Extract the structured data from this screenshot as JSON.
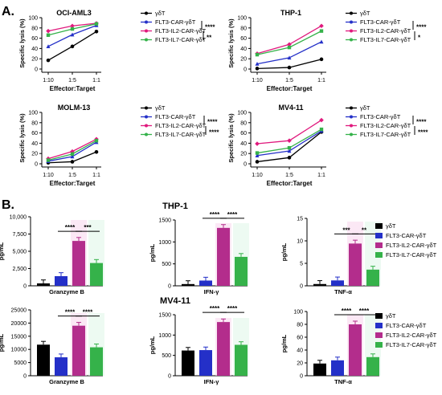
{
  "panel_labels": [
    "A.",
    "B."
  ],
  "section_titles": [
    "THP-1",
    "MV4-11"
  ],
  "colors": {
    "gd": "#000000",
    "flt3": "#2430c8",
    "il2": "#e0197d",
    "il7": "#35b24a",
    "il2_bar": "#b32d8c"
  },
  "chart_data": [
    {
      "type": "line",
      "title": "OCI-AML3",
      "xlabel": "Effector:Target",
      "ylabel": "Specific lysis (%)",
      "categories": [
        "1:10",
        "1:5",
        "1:1"
      ],
      "ylim": [
        0,
        100
      ],
      "yticks": [
        0,
        20,
        40,
        60,
        80,
        100
      ],
      "series": [
        {
          "name": "γδT",
          "values": [
            17,
            44,
            73
          ]
        },
        {
          "name": "FLT3-CAR-γδT",
          "values": [
            44,
            67,
            85
          ]
        },
        {
          "name": "FLT3-IL2-CAR-γδT",
          "values": [
            74,
            84,
            89
          ]
        },
        {
          "name": "FLT3-IL7-CAR-γδT",
          "values": [
            66,
            78,
            88
          ]
        }
      ],
      "significance": [
        "****",
        "**"
      ]
    },
    {
      "type": "line",
      "title": "THP-1",
      "xlabel": "Effector:Target",
      "ylabel": "Specific lysis (%)",
      "categories": [
        "1:10",
        "1:5",
        "1:1"
      ],
      "ylim": [
        0,
        100
      ],
      "yticks": [
        0,
        20,
        40,
        60,
        80,
        100
      ],
      "series": [
        {
          "name": "γδT",
          "values": [
            1,
            3,
            19
          ]
        },
        {
          "name": "FLT3-CAR-γδT",
          "values": [
            10,
            22,
            53
          ]
        },
        {
          "name": "FLT3-IL2-CAR-γδT",
          "values": [
            30,
            48,
            84
          ]
        },
        {
          "name": "FLT3-IL7-CAR-γδT",
          "values": [
            28,
            42,
            74
          ]
        }
      ],
      "significance": [
        "****",
        "*"
      ]
    },
    {
      "type": "line",
      "title": "MOLM-13",
      "xlabel": "Effector:Target",
      "ylabel": "Specific lysis (%)",
      "categories": [
        "1:10",
        "1:5",
        "1:1"
      ],
      "ylim": [
        0,
        100
      ],
      "yticks": [
        0,
        20,
        40,
        60,
        80,
        100
      ],
      "series": [
        {
          "name": "γδT",
          "values": [
            2,
            4,
            23
          ]
        },
        {
          "name": "FLT3-CAR-γδT",
          "values": [
            5,
            14,
            42
          ]
        },
        {
          "name": "FLT3-IL2-CAR-γδT",
          "values": [
            10,
            24,
            48
          ]
        },
        {
          "name": "FLT3-IL7-CAR-γδT",
          "values": [
            7,
            19,
            45
          ]
        }
      ],
      "significance": [
        "****",
        "****"
      ]
    },
    {
      "type": "line",
      "title": "MV4-11",
      "xlabel": "Effector:Target",
      "ylabel": "Specific lysis (%)",
      "categories": [
        "1:10",
        "1:5",
        "1:1"
      ],
      "ylim": [
        0,
        100
      ],
      "yticks": [
        0,
        20,
        40,
        60,
        80,
        100
      ],
      "series": [
        {
          "name": "γδT",
          "values": [
            4,
            12,
            62
          ]
        },
        {
          "name": "FLT3-CAR-γδT",
          "values": [
            16,
            25,
            64
          ]
        },
        {
          "name": "FLT3-IL2-CAR-γδT",
          "values": [
            39,
            45,
            85
          ]
        },
        {
          "name": "FLT3-IL7-CAR-γδT",
          "values": [
            21,
            31,
            67
          ]
        }
      ],
      "significance": [
        "****",
        "****"
      ]
    },
    {
      "type": "bar",
      "xlabel": "Granzyme B",
      "ylabel": "pg/mL",
      "ylim": [
        0,
        10000
      ],
      "yticks": [
        0,
        2500,
        5000,
        7500,
        10000
      ],
      "ytick_labels": [
        "0",
        "2,500",
        "5,000",
        "7,500",
        "10,000"
      ],
      "values": [
        350,
        1400,
        6500,
        3300
      ],
      "brackets": [
        {
          "from": 1,
          "to": 2,
          "label": "****"
        },
        {
          "from": 2,
          "to": 3,
          "label": "***"
        }
      ]
    },
    {
      "type": "bar",
      "xlabel": "IFN-γ",
      "ylabel": "pg/mL",
      "ylim": [
        0,
        1500
      ],
      "yticks": [
        0,
        500,
        1000,
        1500
      ],
      "ytick_labels": [
        "0",
        "500",
        "1000",
        "1500"
      ],
      "values": [
        40,
        120,
        1320,
        660
      ],
      "brackets": [
        {
          "from": 1,
          "to": 2,
          "label": "****"
        },
        {
          "from": 2,
          "to": 3,
          "label": "****"
        }
      ]
    },
    {
      "type": "bar",
      "xlabel": "TNF-α",
      "ylabel": "pg/mL",
      "ylim": [
        0,
        15
      ],
      "yticks": [
        0,
        5,
        10,
        15
      ],
      "ytick_labels": [
        "0",
        "5",
        "10",
        "15"
      ],
      "values": [
        0.4,
        1.2,
        9.4,
        3.6
      ],
      "brackets": [
        {
          "from": 1,
          "to": 2,
          "label": "***"
        },
        {
          "from": 2,
          "to": 3,
          "label": "**"
        }
      ]
    },
    {
      "type": "bar",
      "xlabel": "Granzyme B",
      "ylabel": "pg/mL",
      "ylim": [
        0,
        25000
      ],
      "yticks": [
        0,
        5000,
        10000,
        15000,
        20000,
        25000
      ],
      "ytick_labels": [
        "0",
        "5000",
        "10000",
        "15000",
        "20000",
        "25000"
      ],
      "values": [
        11800,
        7000,
        19000,
        10800
      ],
      "brackets": [
        {
          "from": 1,
          "to": 2,
          "label": "****"
        },
        {
          "from": 2,
          "to": 3,
          "label": "****"
        }
      ]
    },
    {
      "type": "bar",
      "xlabel": "IFN-γ",
      "ylabel": "pg/mL",
      "ylim": [
        0,
        1500
      ],
      "yticks": [
        0,
        500,
        1000,
        1500
      ],
      "ytick_labels": [
        "0",
        "500",
        "1000",
        "1500"
      ],
      "values": [
        620,
        630,
        1320,
        760
      ],
      "brackets": [
        {
          "from": 1,
          "to": 2,
          "label": "****"
        },
        {
          "from": 2,
          "to": 3,
          "label": "****"
        }
      ]
    },
    {
      "type": "bar",
      "xlabel": "TNF-α",
      "ylabel": "pg/mL",
      "ylim": [
        0,
        100
      ],
      "yticks": [
        0,
        20,
        40,
        60,
        80,
        100
      ],
      "ytick_labels": [
        "0",
        "20",
        "40",
        "60",
        "80",
        "100"
      ],
      "values": [
        19,
        24,
        80,
        29
      ],
      "brackets": [
        {
          "from": 1,
          "to": 2,
          "label": "****"
        },
        {
          "from": 2,
          "to": 3,
          "label": "****"
        }
      ]
    }
  ],
  "bar_legend": [
    {
      "name": "γδT"
    },
    {
      "name": "FLT3-CAR-γδT"
    },
    {
      "name": "FLT3-IL2-CAR-γδT"
    },
    {
      "name": "FLT3-IL7-CAR-γδT"
    }
  ]
}
